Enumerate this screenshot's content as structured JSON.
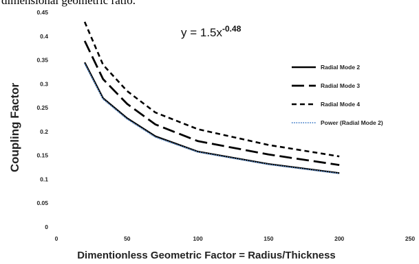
{
  "caption_fragment": "dimensional geometric ratio.",
  "chart_data": {
    "type": "line",
    "title": "",
    "xlabel": "Dimentionless Geometric Factor = Radius/Thickness",
    "ylabel": "Coupling Factor",
    "xlim": [
      0,
      250
    ],
    "ylim": [
      0,
      0.45
    ],
    "xticks": [
      0,
      50,
      100,
      150,
      200,
      250
    ],
    "yticks": [
      0,
      0.05,
      0.1,
      0.15,
      0.2,
      0.25,
      0.3,
      0.35,
      0.4,
      0.45
    ],
    "ytick_labels": [
      "0",
      "0.05",
      "0.1",
      "0.15",
      "0.2",
      "0.25",
      "0.3",
      "0.35",
      "0.4",
      "0.45"
    ],
    "grid": false,
    "legend_position": "right",
    "annotation": {
      "base": "y = 1.5x",
      "exponent": "-0.48"
    },
    "x": [
      20,
      33,
      50,
      70,
      100,
      150,
      200
    ],
    "series": [
      {
        "name": "Radial Mode 2",
        "style": "solid",
        "color": "#000000",
        "values": [
          0.345,
          0.27,
          0.228,
          0.19,
          0.158,
          0.132,
          0.113
        ]
      },
      {
        "name": "Radial Mode 3",
        "style": "longdash",
        "color": "#000000",
        "values": [
          0.39,
          0.31,
          0.258,
          0.215,
          0.18,
          0.152,
          0.13
        ]
      },
      {
        "name": "Radial Mode 4",
        "style": "shortdash",
        "color": "#000000",
        "values": [
          0.43,
          0.34,
          0.285,
          0.24,
          0.205,
          0.172,
          0.148
        ]
      },
      {
        "name": "Power (Radial Mode 2)",
        "style": "dotted",
        "color": "#5b8fd0",
        "values": [
          0.342,
          0.268,
          0.226,
          0.188,
          0.157,
          0.131,
          0.112
        ]
      }
    ]
  }
}
